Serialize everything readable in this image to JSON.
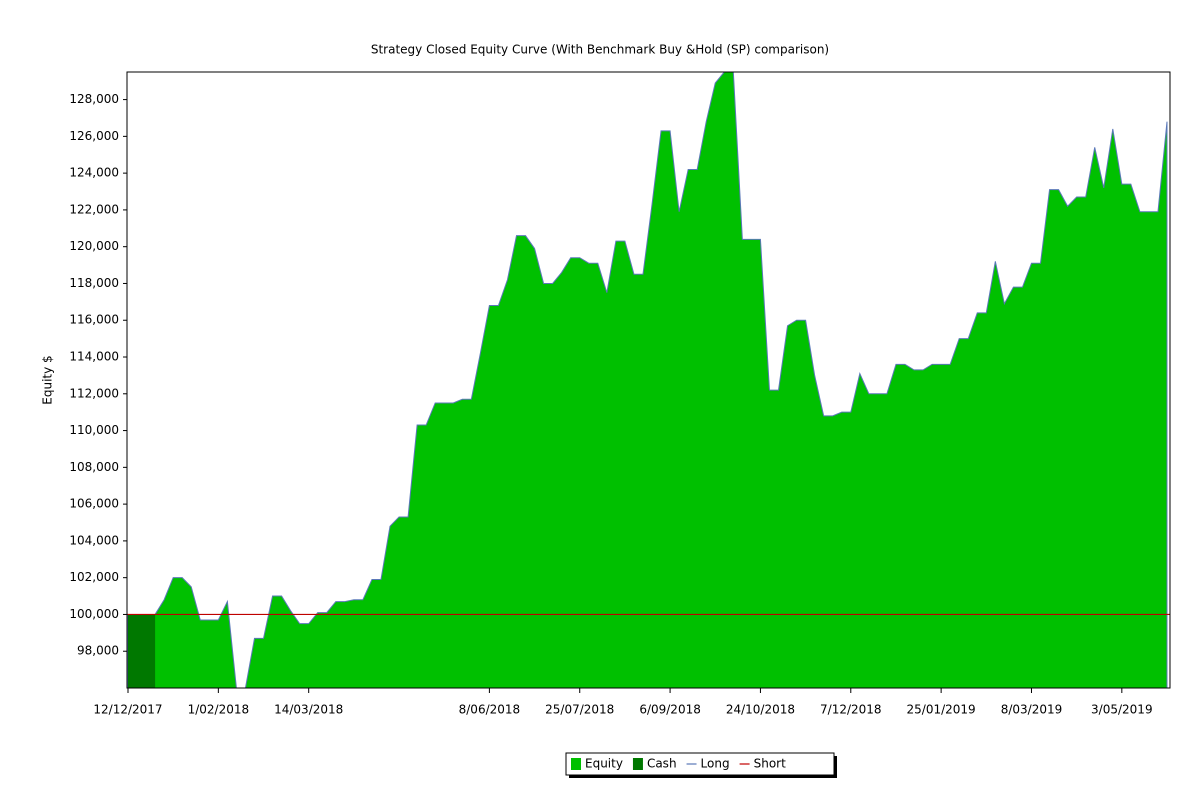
{
  "chart_data": {
    "type": "area",
    "title": "Strategy Closed Equity Curve (With Benchmark Buy &Hold (SP) comparison)",
    "ylabel": "Equity $",
    "categories": [
      "12/12/2017",
      null,
      null,
      null,
      null,
      null,
      null,
      null,
      null,
      null,
      "1/02/2018",
      null,
      null,
      null,
      null,
      null,
      null,
      null,
      null,
      null,
      "14/03/2018",
      null,
      null,
      null,
      null,
      null,
      null,
      null,
      null,
      null,
      null,
      null,
      null,
      null,
      null,
      null,
      null,
      null,
      null,
      null,
      "8/06/2018",
      null,
      null,
      null,
      null,
      null,
      null,
      null,
      null,
      null,
      "25/07/2018",
      null,
      null,
      null,
      null,
      null,
      null,
      null,
      null,
      null,
      "6/09/2018",
      null,
      null,
      null,
      null,
      null,
      null,
      null,
      null,
      null,
      "24/10/2018",
      null,
      null,
      null,
      null,
      null,
      null,
      null,
      null,
      null,
      "7/12/2018",
      null,
      null,
      null,
      null,
      null,
      null,
      null,
      null,
      null,
      "25/01/2019",
      null,
      null,
      null,
      null,
      null,
      null,
      null,
      null,
      null,
      "8/03/2019",
      null,
      null,
      null,
      null,
      null,
      null,
      null,
      null,
      null,
      "3/05/2019",
      null,
      null,
      null,
      null,
      null
    ],
    "series": [
      {
        "name": "Equity",
        "color": "#00c000",
        "values": [
          100000,
          100000,
          100000,
          100000,
          100800,
          102000,
          102000,
          101500,
          99700,
          99700,
          99700,
          100700,
          96000,
          96000,
          98700,
          98700,
          101000,
          101000,
          100200,
          99500,
          99500,
          100100,
          100100,
          100700,
          100700,
          100800,
          100800,
          101900,
          101900,
          104800,
          105300,
          105300,
          110300,
          110300,
          111500,
          111500,
          111500,
          111700,
          111700,
          114200,
          116800,
          116800,
          118200,
          120600,
          120600,
          119900,
          118000,
          118000,
          118600,
          119400,
          119400,
          119100,
          119100,
          117500,
          120300,
          120300,
          118500,
          118500,
          122300,
          126300,
          126300,
          121900,
          124200,
          124200,
          126800,
          128900,
          129500,
          129500,
          120400,
          120400,
          120400,
          112200,
          112200,
          115700,
          116000,
          116000,
          113000,
          110800,
          110800,
          111000,
          111000,
          113100,
          112000,
          112000,
          112000,
          113600,
          113600,
          113300,
          113300,
          113600,
          113600,
          113600,
          115000,
          115000,
          116400,
          116400,
          119200,
          116900,
          117800,
          117800,
          119100,
          119100,
          123100,
          123100,
          122200,
          122700,
          122700,
          125400,
          123200,
          126400,
          123400,
          123400,
          121900,
          121900,
          121900,
          126800
        ]
      },
      {
        "name": "Cash",
        "color": "#007800",
        "values": [
          100000,
          100000,
          100000,
          100000,
          null,
          null,
          null,
          null,
          null,
          null,
          null,
          null,
          null,
          null,
          null,
          null,
          null,
          null,
          null,
          null,
          null,
          null,
          null,
          null,
          null,
          null,
          null,
          null,
          null,
          null,
          null,
          null,
          null,
          null,
          null,
          null,
          null,
          null,
          null,
          null,
          null,
          null,
          null,
          null,
          null,
          null,
          null,
          null,
          null,
          null,
          null,
          null,
          null,
          null,
          null,
          null,
          null,
          null,
          null,
          null,
          null,
          null,
          null,
          null,
          null,
          null,
          null,
          null,
          null,
          null,
          null,
          null,
          null,
          null,
          null,
          null,
          null,
          null,
          null,
          null,
          null,
          null,
          null,
          null,
          null,
          null,
          null,
          null,
          null,
          null,
          null,
          null,
          null,
          null,
          null,
          null,
          null,
          null,
          null,
          null,
          null,
          null,
          null,
          null,
          null,
          null,
          null,
          null,
          null,
          null,
          null,
          null,
          null,
          null,
          null,
          null
        ]
      }
    ],
    "lines": [
      {
        "name": "Long",
        "color": "#5a78b8"
      },
      {
        "name": "Short",
        "color": "#c00000",
        "value": 100000
      }
    ],
    "ylim": [
      96000,
      129500
    ],
    "yticks": [
      {
        "value": 98000,
        "label": "98,000"
      },
      {
        "value": 100000,
        "label": "100,000"
      },
      {
        "value": 102000,
        "label": "102,000"
      },
      {
        "value": 104000,
        "label": "104,000"
      },
      {
        "value": 106000,
        "label": "106,000"
      },
      {
        "value": 108000,
        "label": "108,000"
      },
      {
        "value": 110000,
        "label": "110,000"
      },
      {
        "value": 112000,
        "label": "112,000"
      },
      {
        "value": 114000,
        "label": "114,000"
      },
      {
        "value": 116000,
        "label": "116,000"
      },
      {
        "value": 118000,
        "label": "118,000"
      },
      {
        "value": 120000,
        "label": "120,000"
      },
      {
        "value": 122000,
        "label": "122,000"
      },
      {
        "value": 124000,
        "label": "124,000"
      },
      {
        "value": 126000,
        "label": "126,000"
      },
      {
        "value": 128000,
        "label": "128,000"
      }
    ]
  }
}
